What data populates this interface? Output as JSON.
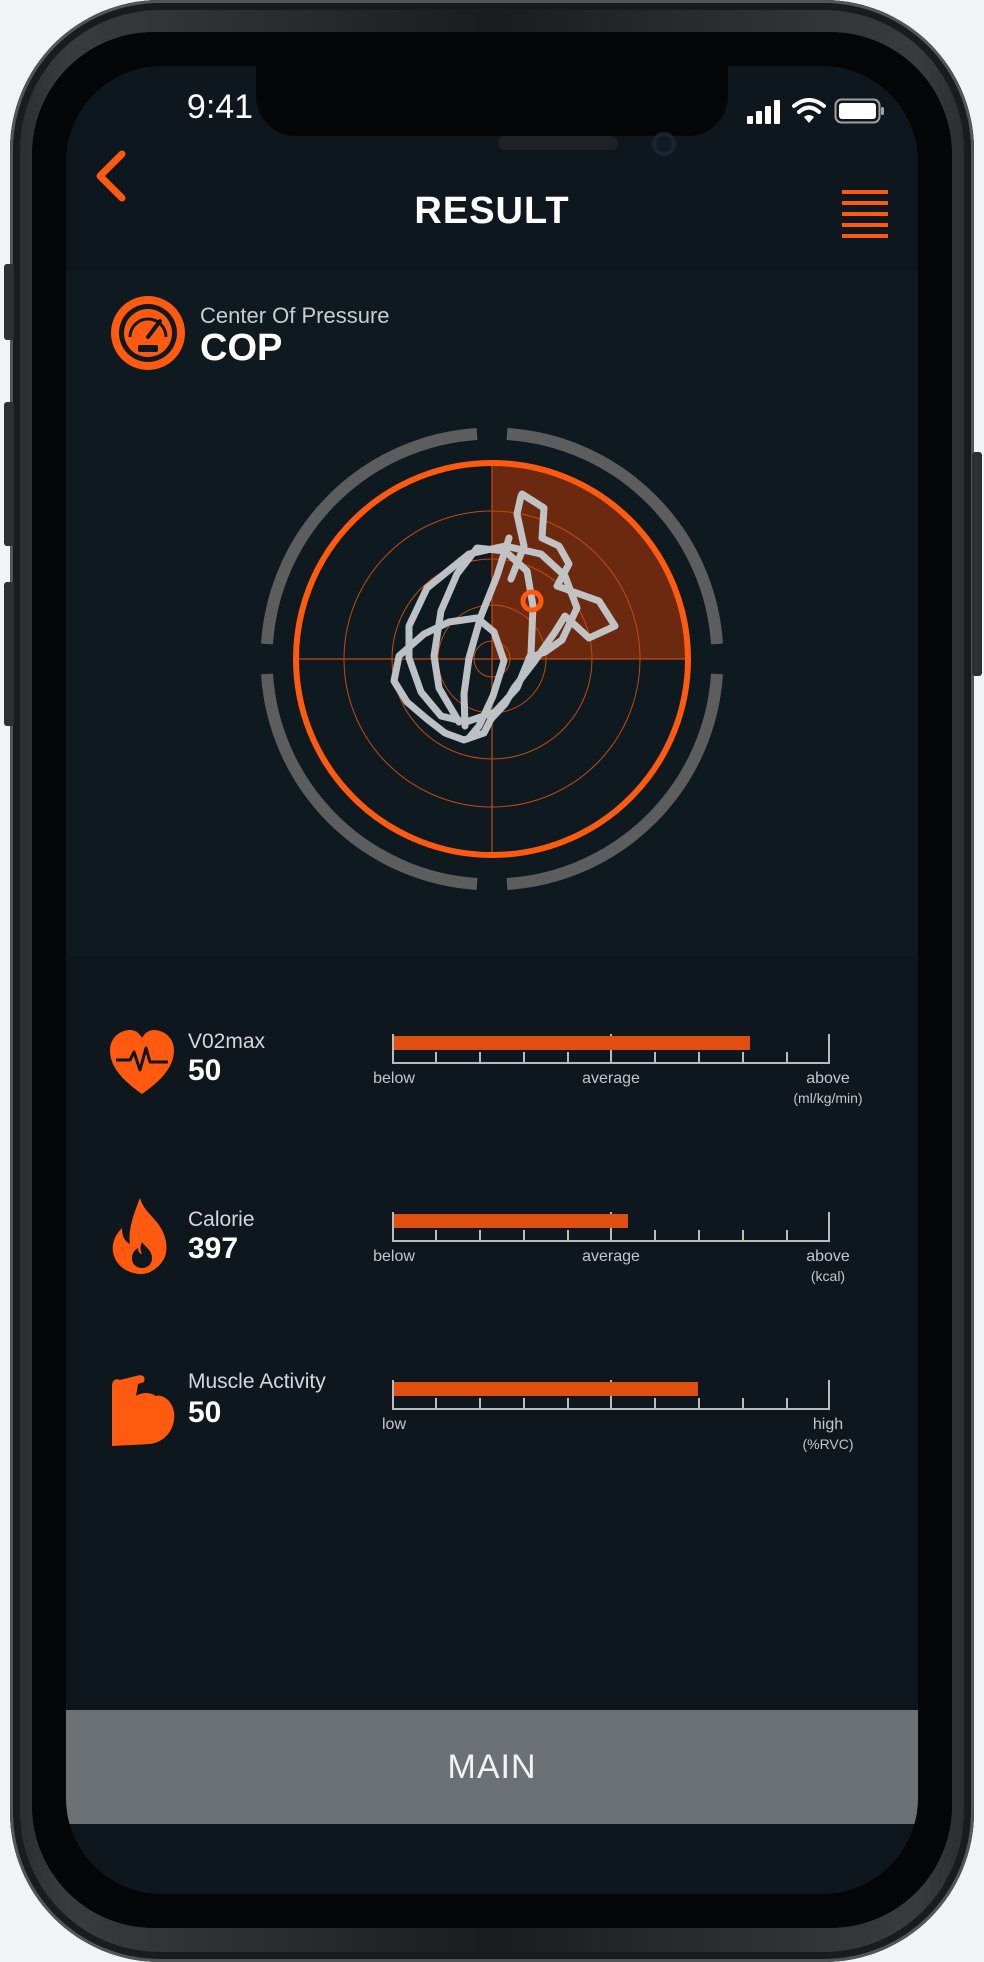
{
  "status_bar": {
    "time": "9:41",
    "icons": [
      "signal-icon",
      "wifi-icon",
      "battery-icon"
    ]
  },
  "header": {
    "title": "RESULT",
    "back_icon": "chevron-left-icon",
    "menu_icon": "hamburger-menu-icon"
  },
  "cop": {
    "subtitle": "Center Of Pressure",
    "title": "COP",
    "icon": "gauge-icon"
  },
  "metrics": [
    {
      "icon": "heart-pulse-icon",
      "label": "V02max",
      "value": "50",
      "level": 0.82,
      "axis": {
        "left": "below",
        "middle": "average",
        "right": "above",
        "unit": "(ml/kg/min)"
      }
    },
    {
      "icon": "flame-icon",
      "label": "Calorie",
      "value": "397",
      "level": 0.54,
      "axis": {
        "left": "below",
        "middle": "average",
        "right": "above",
        "unit": "(kcal)"
      }
    },
    {
      "icon": "muscle-icon",
      "label": "Muscle Activity",
      "value": "50",
      "level": 0.7,
      "axis": {
        "left": "low",
        "middle": "",
        "right": "high",
        "unit": "(%RVC)"
      }
    }
  ],
  "footer": {
    "main_label": "MAIN"
  },
  "colors": {
    "accent": "#ff5a0f",
    "background": "#0e171d",
    "panel": "#0f1a20",
    "button": "#6b7174"
  }
}
